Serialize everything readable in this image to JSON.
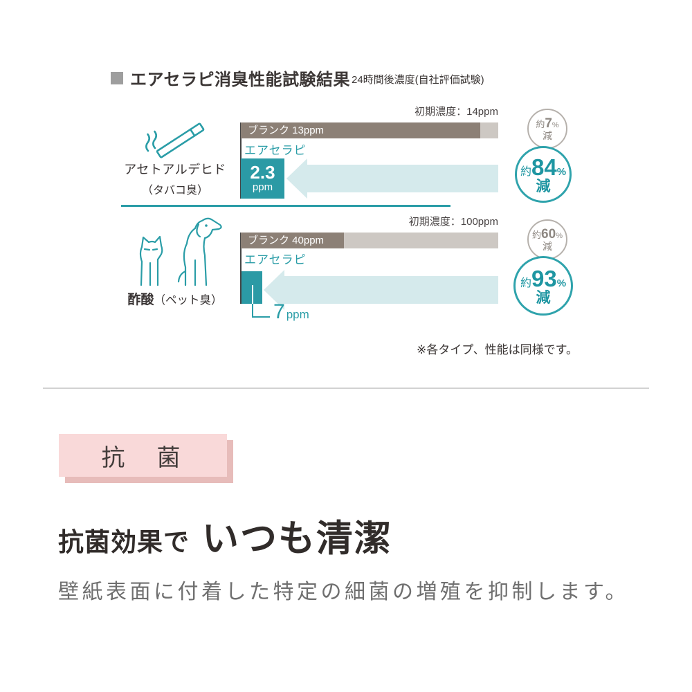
{
  "header": {
    "title": "エアセラピ消臭性能試験結果",
    "subtitle": "24時間後濃度(自社評価試験)"
  },
  "chart_data": {
    "type": "bar",
    "title": "エアセラピ消臭性能試験結果",
    "subtitle": "24時間後濃度(自社評価試験)",
    "unit": "ppm",
    "legend": [
      "ブランク",
      "エアセラピ"
    ],
    "rows": [
      {
        "substance": "アセトアルデヒド",
        "odor_note": "（タバコ臭）",
        "icon": "cigarette-icon",
        "initial_label": "初期濃度：14ppm",
        "initial_ppm": 14,
        "blank_label": "ブランク 13ppm",
        "blank_ppm": 13,
        "blank_fraction": 0.93,
        "product_label": "エアセラピ",
        "product_ppm": 2.3,
        "box_value": "2.3",
        "box_unit": "ppm",
        "blank_reduction": {
          "prefix": "約",
          "value": "7",
          "percent": "%",
          "word": "減"
        },
        "product_reduction": {
          "prefix": "約",
          "value": "84",
          "percent": "%",
          "word": "減"
        }
      },
      {
        "substance": "酢酸",
        "odor_note": "（ペット臭）",
        "icon": "cat-dog-icon",
        "initial_label": "初期濃度：100ppm",
        "initial_ppm": 100,
        "blank_label": "ブランク  40ppm",
        "blank_ppm": 40,
        "blank_fraction": 0.4,
        "product_label": "エアセラピ",
        "product_ppm": 7,
        "callout_value": "7",
        "callout_unit": "ppm",
        "blank_reduction": {
          "prefix": "約",
          "value": "60",
          "percent": "%",
          "word": "減"
        },
        "product_reduction": {
          "prefix": "約",
          "value": "93",
          "percent": "%",
          "word": "減"
        }
      }
    ],
    "note": "※各タイプ、性能は同様です。"
  },
  "antibacterial": {
    "badge": "抗　菌",
    "heading_lead": "抗菌効果で",
    "heading_main": "いつも清潔",
    "description": "壁紙表面に付着した特定の細菌の増殖を抑制します。"
  },
  "colors": {
    "teal": "#2A9DA7",
    "teal_box": "#2B9AA5",
    "arrow_light_teal": "#D5EAEC",
    "bar_taupe": "#8C8076",
    "bar_light": "#CDC8C3",
    "gray_circle_text": "#8E8882",
    "pink_badge": "#F9D9D9",
    "pink_shadow": "#E7BCBA"
  }
}
